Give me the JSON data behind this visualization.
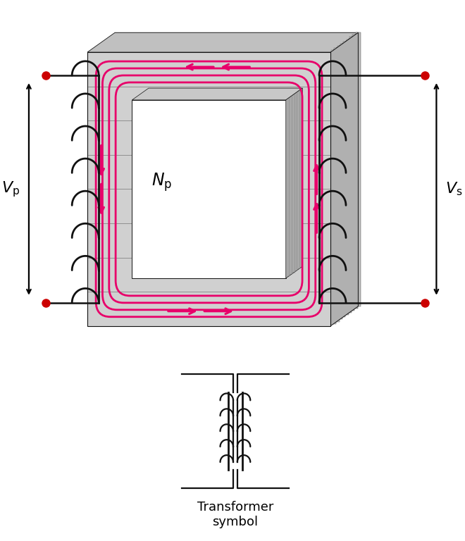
{
  "bg_color": "#ffffff",
  "core_face_color": "#d0d0d0",
  "core_top_color": "#c0c0c0",
  "core_right_color": "#b0b0b0",
  "core_inner_top": "#c8c8c8",
  "core_inner_right": "#a8a8a8",
  "core_back_color": "#e0e0e0",
  "lam_color": "#909090",
  "flux_color": "#e8006a",
  "wire_color": "#111111",
  "dot_color": "#cc0000",
  "Np_label": "$N_\\mathrm{p}$",
  "Vp_label": "$V_\\mathrm{p}$",
  "Vs_label": "$V_\\mathrm{s}$",
  "sym_label_line1": "Transformer",
  "sym_label_line2": "symbol"
}
